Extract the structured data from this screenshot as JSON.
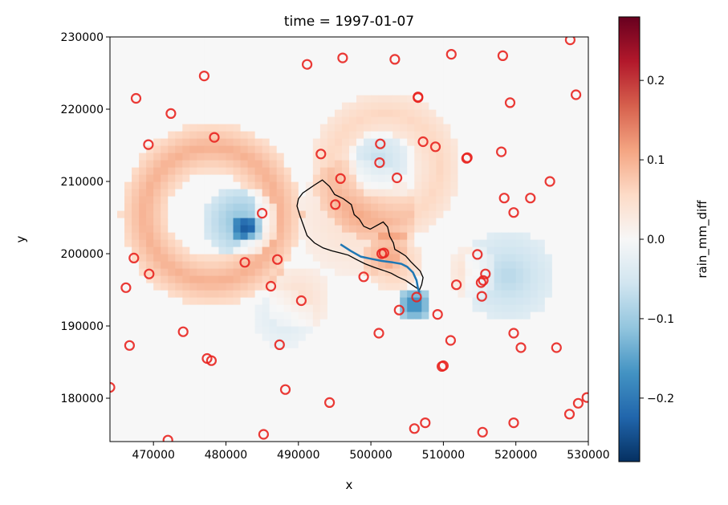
{
  "colors": {
    "colormap": "RdBu_r",
    "station_marker": "#e8231f",
    "river": "#1f77b4",
    "catchment_outline": "#000000"
  },
  "chart_data": {
    "type": "heatmap",
    "title": "time = 1997-01-07",
    "xlabel": "x",
    "ylabel": "y",
    "xlim": [
      464000,
      530000
    ],
    "ylim": [
      174000,
      230000
    ],
    "xticks": [
      470000,
      480000,
      490000,
      500000,
      510000,
      520000,
      530000
    ],
    "xtick_labels": [
      "470000",
      "480000",
      "490000",
      "500000",
      "510000",
      "520000",
      "530000"
    ],
    "yticks": [
      180000,
      190000,
      200000,
      210000,
      220000,
      230000
    ],
    "ytick_labels": [
      "180000",
      "190000",
      "200000",
      "210000",
      "220000",
      "230000"
    ],
    "grid": false,
    "colorbar": {
      "label": "rain_mm_diff",
      "range": [
        -0.28,
        0.28
      ],
      "ticks": [
        -0.2,
        -0.1,
        0.0,
        0.1,
        0.2
      ],
      "tick_labels": [
        "−0.2",
        "−0.1",
        "0.0",
        "0.1",
        "0.2"
      ]
    },
    "field_features": [
      {
        "kind": "ring",
        "center": [
          478000,
          205500
        ],
        "inner_radius": 6000,
        "outer_radius": 12500,
        "value": 0.1
      },
      {
        "kind": "spot",
        "center": [
          482000,
          204500
        ],
        "radius": 5000,
        "value": -0.12
      },
      {
        "kind": "spot",
        "center": [
          483000,
          203500
        ],
        "radius": 2000,
        "value": -0.15
      },
      {
        "kind": "ring",
        "center": [
          502000,
          212000
        ],
        "inner_radius": 4500,
        "outer_radius": 10500,
        "value": 0.06
      },
      {
        "kind": "spot",
        "center": [
          501000,
          213000
        ],
        "radius": 4000,
        "value": -0.07
      },
      {
        "kind": "spot",
        "center": [
          498000,
          205000
        ],
        "radius": 8000,
        "value": 0.05
      },
      {
        "kind": "spot",
        "center": [
          503000,
          199000
        ],
        "radius": 4000,
        "value": 0.09
      },
      {
        "kind": "spot",
        "center": [
          506000,
          193000
        ],
        "radius": 2500,
        "value": -0.2
      },
      {
        "kind": "spot",
        "center": [
          519000,
          197000
        ],
        "radius": 6500,
        "value": -0.08
      },
      {
        "kind": "spot",
        "center": [
          514000,
          197500
        ],
        "radius": 3500,
        "value": 0.05
      },
      {
        "kind": "spot",
        "center": [
          490000,
          194000
        ],
        "radius": 4500,
        "value": 0.05
      },
      {
        "kind": "spot",
        "center": [
          488000,
          191000
        ],
        "radius": 4000,
        "value": -0.04
      }
    ],
    "stations": [
      [
        464000,
        181500
      ],
      [
        466200,
        195300
      ],
      [
        466700,
        187300
      ],
      [
        467300,
        199400
      ],
      [
        467600,
        221500
      ],
      [
        469300,
        215100
      ],
      [
        469400,
        197200
      ],
      [
        472000,
        174200
      ],
      [
        472400,
        219400
      ],
      [
        474100,
        189200
      ],
      [
        477000,
        224600
      ],
      [
        477400,
        185500
      ],
      [
        478000,
        185200
      ],
      [
        478400,
        216100
      ],
      [
        482600,
        198800
      ],
      [
        485000,
        205600
      ],
      [
        485200,
        175000
      ],
      [
        486200,
        195500
      ],
      [
        487100,
        199200
      ],
      [
        487400,
        187400
      ],
      [
        488200,
        181200
      ],
      [
        490400,
        193500
      ],
      [
        491200,
        226200
      ],
      [
        493100,
        213800
      ],
      [
        494300,
        179400
      ],
      [
        495100,
        206800
      ],
      [
        495800,
        210400
      ],
      [
        496100,
        227100
      ],
      [
        499000,
        196800
      ],
      [
        501100,
        189000
      ],
      [
        501200,
        212600
      ],
      [
        501300,
        215200
      ],
      [
        501500,
        200000
      ],
      [
        501800,
        200100
      ],
      [
        503300,
        226900
      ],
      [
        503600,
        210500
      ],
      [
        503900,
        192200
      ],
      [
        506000,
        175800
      ],
      [
        506300,
        194000
      ],
      [
        506500,
        221700
      ],
      [
        506500,
        221600
      ],
      [
        507200,
        215500
      ],
      [
        507500,
        176600
      ],
      [
        508900,
        214800
      ],
      [
        509200,
        191600
      ],
      [
        509800,
        184400
      ],
      [
        510000,
        184500
      ],
      [
        511000,
        188000
      ],
      [
        511100,
        227600
      ],
      [
        511800,
        195700
      ],
      [
        513200,
        213200
      ],
      [
        513300,
        213300
      ],
      [
        514700,
        199900
      ],
      [
        515200,
        196000
      ],
      [
        515300,
        194100
      ],
      [
        515400,
        175300
      ],
      [
        515500,
        196300
      ],
      [
        515800,
        197200
      ],
      [
        518000,
        214100
      ],
      [
        518200,
        227400
      ],
      [
        518400,
        207700
      ],
      [
        519200,
        220900
      ],
      [
        519700,
        205700
      ],
      [
        519700,
        189000
      ],
      [
        519700,
        176600
      ],
      [
        520700,
        187000
      ],
      [
        522000,
        207700
      ],
      [
        524700,
        210000
      ],
      [
        525600,
        187000
      ],
      [
        527400,
        177800
      ],
      [
        527500,
        229600
      ],
      [
        528300,
        222000
      ],
      [
        528600,
        179300
      ],
      [
        529800,
        180100
      ]
    ],
    "river_path": [
      [
        495800,
        201300
      ],
      [
        497200,
        200400
      ],
      [
        498600,
        199600
      ],
      [
        500000,
        199300
      ],
      [
        501500,
        199000
      ],
      [
        503000,
        198800
      ],
      [
        504200,
        198600
      ],
      [
        505000,
        198200
      ],
      [
        505800,
        197400
      ],
      [
        506300,
        196300
      ],
      [
        506500,
        195200
      ],
      [
        506700,
        194600
      ]
    ],
    "catchment_outline": [
      [
        490600,
        208400
      ],
      [
        492200,
        209500
      ],
      [
        493300,
        210200
      ],
      [
        494300,
        209300
      ],
      [
        495000,
        208200
      ],
      [
        496200,
        207600
      ],
      [
        497300,
        206800
      ],
      [
        497700,
        205400
      ],
      [
        498400,
        204800
      ],
      [
        499000,
        203800
      ],
      [
        499900,
        203400
      ],
      [
        500800,
        203900
      ],
      [
        501700,
        204400
      ],
      [
        502300,
        203700
      ],
      [
        502600,
        202400
      ],
      [
        503100,
        201500
      ],
      [
        503300,
        200600
      ],
      [
        504000,
        200200
      ],
      [
        504800,
        199700
      ],
      [
        505500,
        198900
      ],
      [
        506100,
        198300
      ],
      [
        506800,
        197600
      ],
      [
        507200,
        196700
      ],
      [
        507000,
        195700
      ],
      [
        506700,
        195000
      ],
      [
        505800,
        195600
      ],
      [
        504800,
        196300
      ],
      [
        503700,
        196800
      ],
      [
        502800,
        197300
      ],
      [
        501700,
        197700
      ],
      [
        500500,
        198100
      ],
      [
        499200,
        198600
      ],
      [
        498000,
        199200
      ],
      [
        496900,
        199800
      ],
      [
        495800,
        200100
      ],
      [
        494600,
        200400
      ],
      [
        493400,
        200800
      ],
      [
        492200,
        201500
      ],
      [
        491200,
        202500
      ],
      [
        490700,
        203900
      ],
      [
        490200,
        205300
      ],
      [
        489800,
        206600
      ],
      [
        490000,
        207600
      ]
    ]
  }
}
